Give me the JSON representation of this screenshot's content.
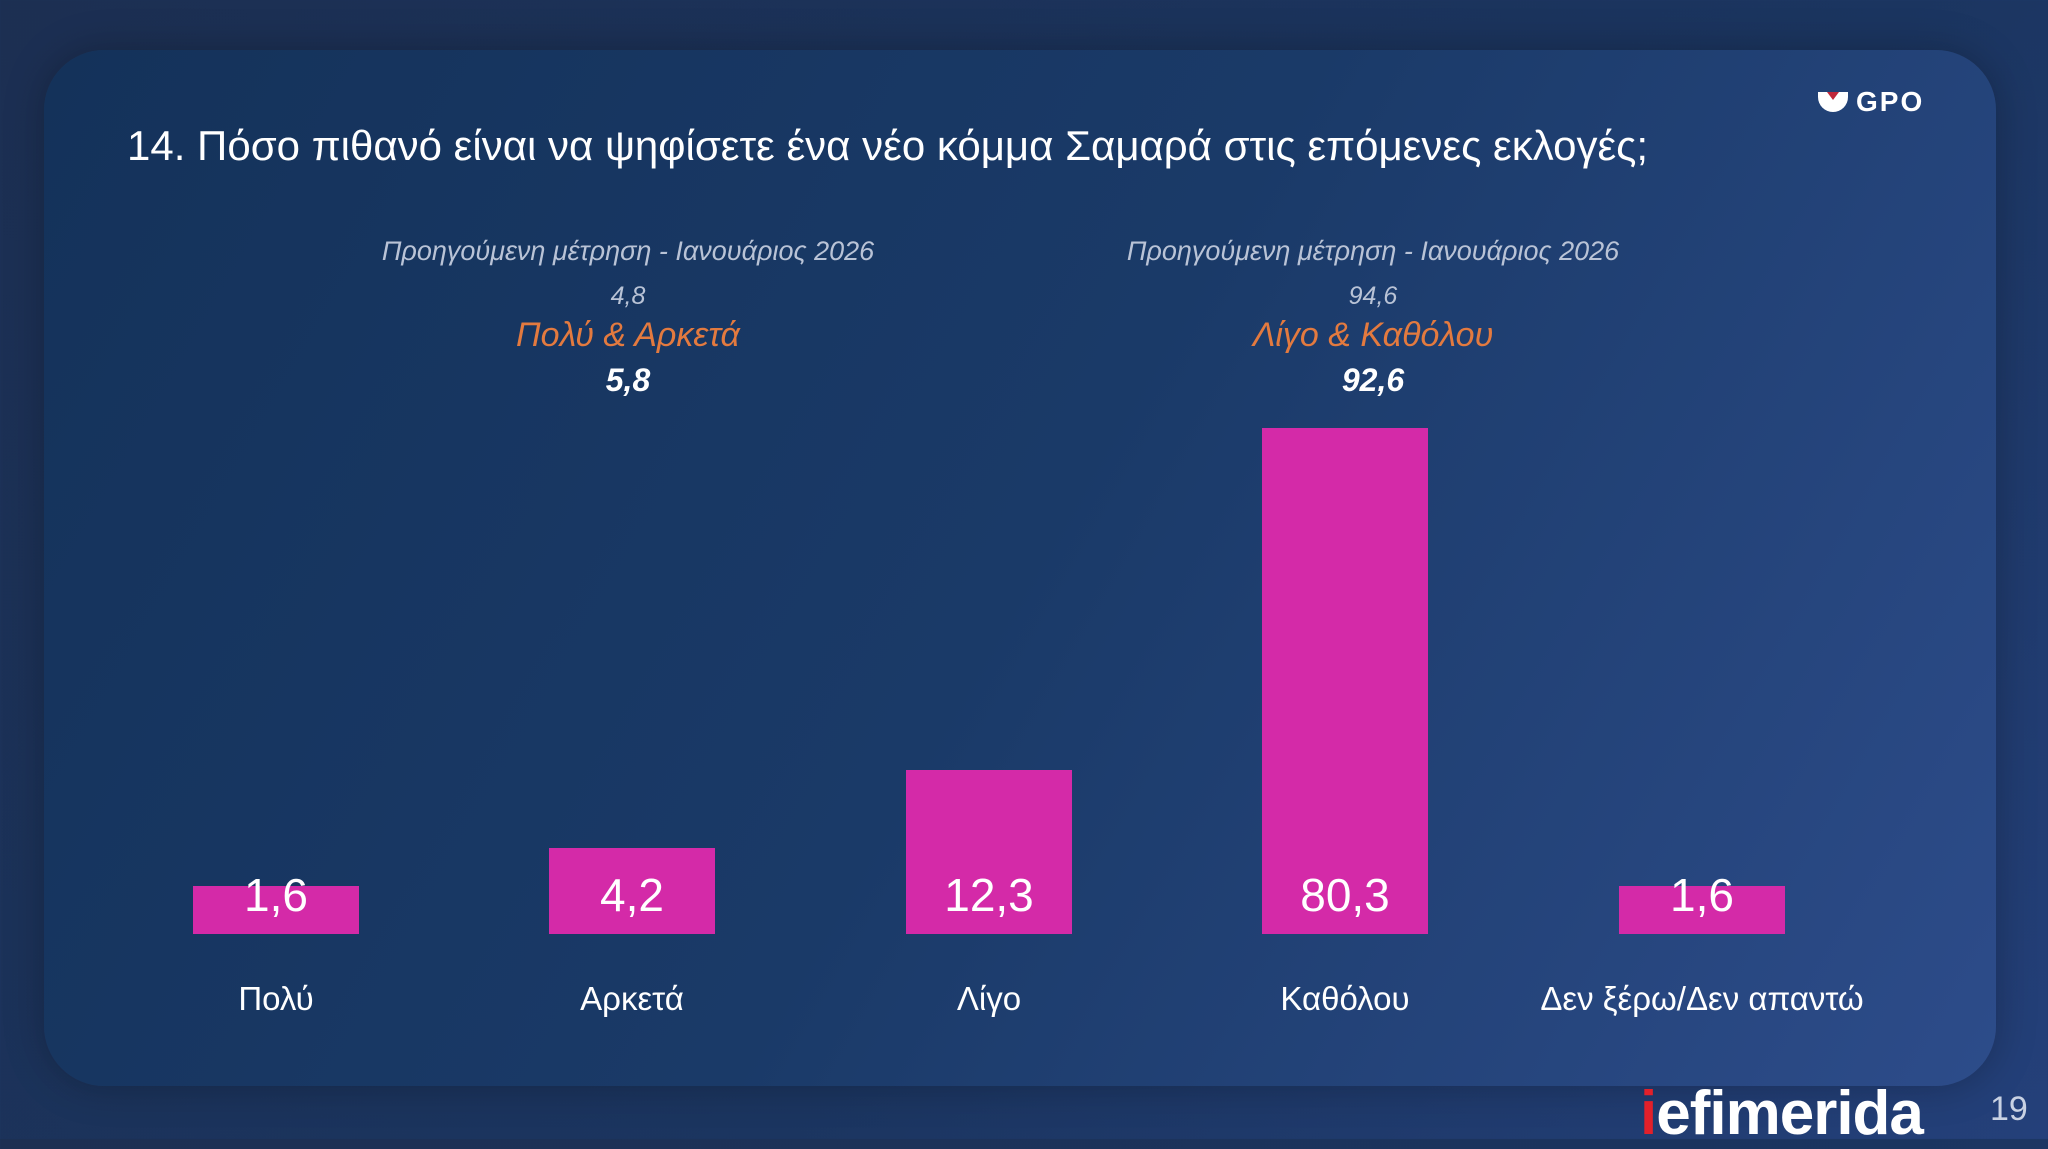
{
  "chart_data": {
    "type": "bar",
    "title": "14. Πόσο πιθανό είναι να ψηφίσετε ένα νέο κόμμα Σαμαρά στις επόμενες εκλογές;",
    "categories": [
      "Πολύ",
      "Αρκετά",
      "Λίγο",
      "Καθόλου",
      "Δεν ξέρω/Δεν απαντώ"
    ],
    "values": [
      1.6,
      4.2,
      12.3,
      80.3,
      1.6
    ],
    "value_labels": [
      "1,6",
      "4,2",
      "12,3",
      "80,3",
      "1,6"
    ],
    "color": "#d42aa8",
    "grid": false,
    "annotations": [
      {
        "previous_label": "Προηγούμενη μέτρηση - Ιανουάριος 2026",
        "previous_value": "4,8",
        "label": "Πολύ & Αρκετά",
        "value": "5,8"
      },
      {
        "previous_label": "Προηγούμενη μέτρηση - Ιανουάριος 2026",
        "previous_value": "94,6",
        "label": "Λίγο & Καθόλου",
        "value": "92,6"
      }
    ]
  },
  "logo": "GPO",
  "brand": {
    "i": "i",
    "rest": "efimerida"
  },
  "page_number": "19"
}
